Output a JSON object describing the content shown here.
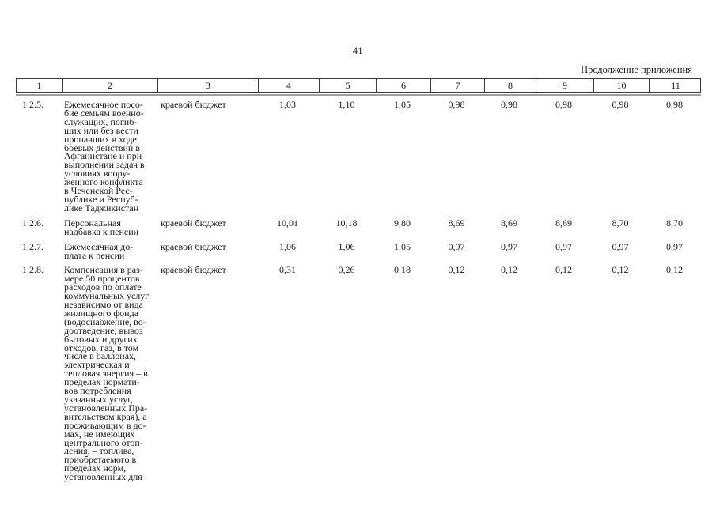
{
  "page": {
    "number": "41",
    "continuation": "Продолжение приложения"
  },
  "table": {
    "header": [
      "1",
      "2",
      "3",
      "4",
      "5",
      "6",
      "7",
      "8",
      "9",
      "10",
      "11"
    ],
    "rows": [
      {
        "num": "1.2.5.",
        "name": "Ежемесячное посо-\nбие семьям военно-\nслужащих, погиб-\nших или без вести\nпропавших в ходе\nбоевых действий в\nАфганистане и при\nвыполнении задач в\nусловиях воору-\nженного конфликта\nв Чеченской Рес-\nпублике и Респуб-\nлике Таджикистан",
        "source": "краевой бюджет",
        "values": [
          "1,03",
          "1,10",
          "1,05",
          "0,98",
          "0,98",
          "0,98",
          "0,98",
          "0,98"
        ]
      },
      {
        "num": "1.2.6.",
        "name": "Персональная\nнадбавка к пенсии",
        "source": "краевой бюджет",
        "values": [
          "10,01",
          "10,18",
          "9,80",
          "8,69",
          "8,69",
          "8,69",
          "8,70",
          "8,70"
        ]
      },
      {
        "num": "1.2.7.",
        "name": "Ежемесячная до-\nплата к пенсии",
        "source": "краевой бюджет",
        "values": [
          "1,06",
          "1,06",
          "1,05",
          "0,97",
          "0,97",
          "0,97",
          "0,97",
          "0,97"
        ]
      },
      {
        "num": "1.2.8.",
        "name": "Компенсация в раз-\nмере 50 процентов\nрасходов по оплате\nкоммунальных услуг\nнезависимо от вида\nжилищного фонда\n(водоснабжение, во-\nдоотведение, вывоз\nбытовых и других\nотходов, газ, в том\nчисле в баллонах,\nэлектрическая и\nтепловая энергия – в\nпределах нормати-\nвов потребления\nуказанных услуг,\nустановленных Пра-\nвительством края), а\nпроживающим в до-\nмах, не имеющих\nцентрального отоп-\nления, – топлива,\nприобретаемого в\nпределах норм,\nустановленных для",
        "source": "краевой бюджет",
        "values": [
          "0,31",
          "0,26",
          "0,18",
          "0,12",
          "0,12",
          "0,12",
          "0,12",
          "0,12"
        ]
      }
    ]
  }
}
